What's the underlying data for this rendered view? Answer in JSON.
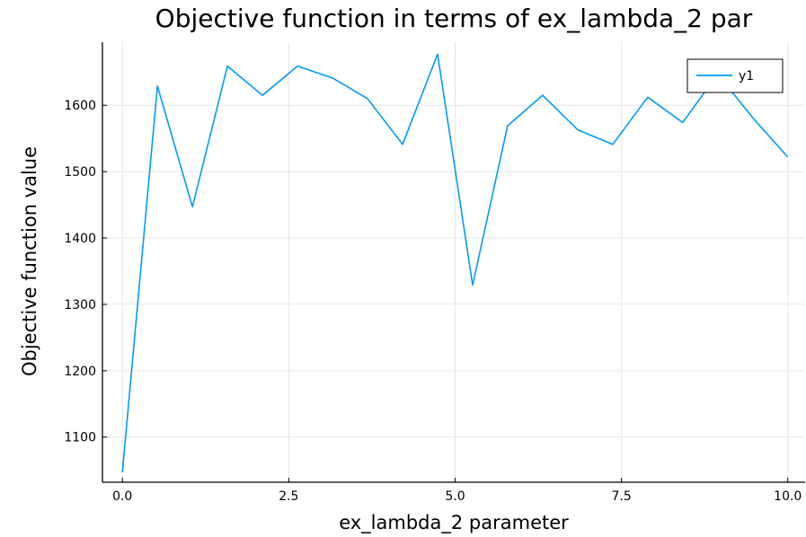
{
  "chart_data": {
    "type": "line",
    "title": "Objective function in terms of ex_lambda_2 par",
    "xlabel": "ex_lambda_2 parameter",
    "ylabel": "Objective function value",
    "xlim": [
      -0.3,
      10.26
    ],
    "ylim": [
      1032,
      1695
    ],
    "xticks": [
      0.0,
      2.5,
      5.0,
      7.5,
      10.0
    ],
    "xtick_labels": [
      "0.0",
      "2.5",
      "5.0",
      "7.5",
      "10.0"
    ],
    "yticks": [
      1100,
      1200,
      1300,
      1400,
      1500,
      1600
    ],
    "ytick_labels": [
      "1100",
      "1200",
      "1300",
      "1400",
      "1500",
      "1600"
    ],
    "grid": true,
    "legend_position": "top-right",
    "series": [
      {
        "name": "y1",
        "color": "#009AFA",
        "x": [
          0.0,
          0.5263,
          1.0526,
          1.5789,
          2.1053,
          2.6316,
          3.1579,
          3.6842,
          4.2105,
          4.7368,
          5.2632,
          5.7895,
          6.3158,
          6.8421,
          7.3684,
          7.8947,
          8.4211,
          8.9474,
          9.4737,
          10.0
        ],
        "y": [
          1047,
          1629,
          1447,
          1659,
          1615,
          1659,
          1641,
          1610,
          1541,
          1677,
          1329,
          1569,
          1615,
          1563,
          1541,
          1612,
          1574,
          1647,
          1581,
          1522
        ]
      }
    ]
  }
}
